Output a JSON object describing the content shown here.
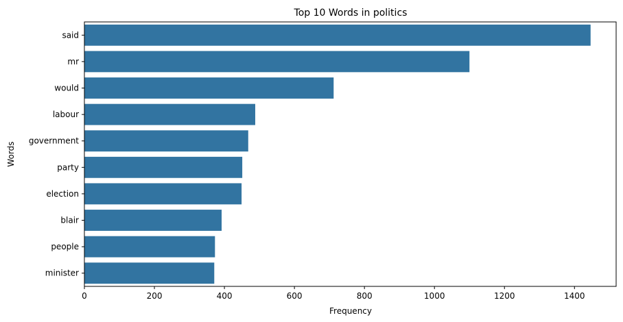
{
  "chart_data": {
    "type": "bar",
    "orientation": "horizontal",
    "title": "Top 10 Words in politics",
    "xlabel": "Frequency",
    "ylabel": "Words",
    "categories": [
      "said",
      "mr",
      "would",
      "labour",
      "government",
      "party",
      "election",
      "blair",
      "people",
      "minister"
    ],
    "values": [
      1446,
      1100,
      712,
      488,
      468,
      451,
      449,
      392,
      373,
      371
    ],
    "xlim": [
      0,
      1519
    ],
    "xticks": [
      0,
      200,
      400,
      600,
      800,
      1000,
      1200,
      1400
    ],
    "grid": false,
    "bar_color": "#3274a1"
  }
}
